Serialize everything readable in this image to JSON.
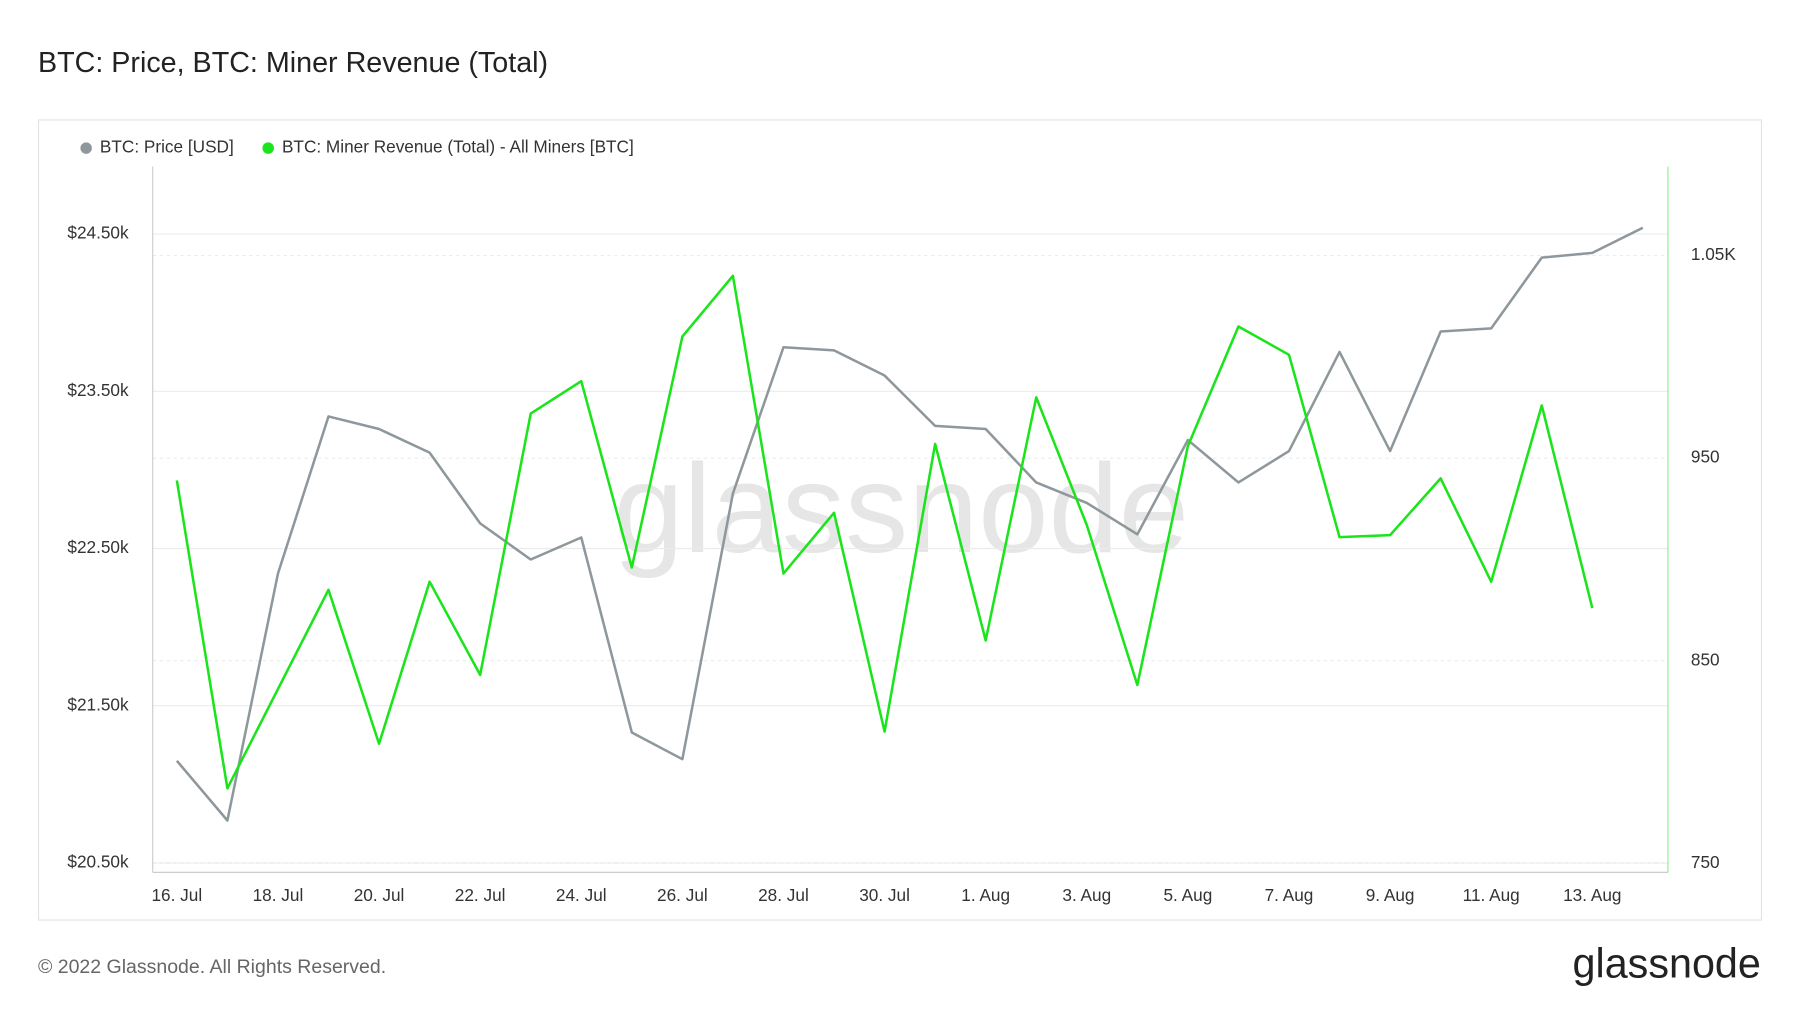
{
  "chart_data": {
    "type": "line",
    "title": "BTC: Price, BTC: Miner Revenue (Total)",
    "watermark": "glassnode",
    "footer": "© 2022 Glassnode. All Rights Reserved.",
    "logo": "glassnode",
    "legend": "top-left",
    "grid": true,
    "categories": [
      "16. Jul",
      null,
      "18. Jul",
      null,
      "20. Jul",
      null,
      "22. Jul",
      null,
      "24. Jul",
      null,
      "26. Jul",
      null,
      "28. Jul",
      null,
      "30. Jul",
      null,
      "1. Aug",
      null,
      "3. Aug",
      null,
      "5. Aug",
      null,
      "7. Aug",
      null,
      "9. Aug",
      null,
      "11. Aug",
      null,
      "13. Aug",
      null
    ],
    "ylim": [
      20440,
      24930
    ],
    "yticks": [
      {
        "value": 20500,
        "label": "$20.50k"
      },
      {
        "value": 21500,
        "label": "$21.50k"
      },
      {
        "value": 22500,
        "label": "$22.50k"
      },
      {
        "value": 23500,
        "label": "$23.50k"
      },
      {
        "value": 24500,
        "label": "$24.50k"
      }
    ],
    "y2lim": [
      745.5,
      1094
    ],
    "y2ticks": [
      750,
      850,
      950,
      {
        "value": 1050,
        "label": "1.05K"
      }
    ],
    "series": [
      {
        "name": "BTC: Price [USD]",
        "color": "#8e979c",
        "axis": "y",
        "values": [
          21150,
          20770,
          22340,
          23340,
          23260,
          23110,
          22660,
          22430,
          22570,
          21330,
          21160,
          22850,
          23780,
          23760,
          23600,
          23280,
          23260,
          22920,
          22790,
          22590,
          23190,
          22920,
          23120,
          23750,
          23120,
          23880,
          23900,
          24350,
          24380,
          24540
        ]
      },
      {
        "name": "BTC: Miner Revenue (Total) - All Miners [BTC]",
        "color": "#1ae41a",
        "axis": "y2",
        "values": [
          939,
          787,
          836,
          885,
          809,
          889,
          843,
          972,
          988,
          896,
          1010,
          1040,
          893,
          923,
          815,
          957,
          860,
          980,
          917,
          838,
          956,
          1015,
          1001,
          911,
          912,
          940,
          889,
          976,
          876,
          null
        ]
      }
    ]
  }
}
